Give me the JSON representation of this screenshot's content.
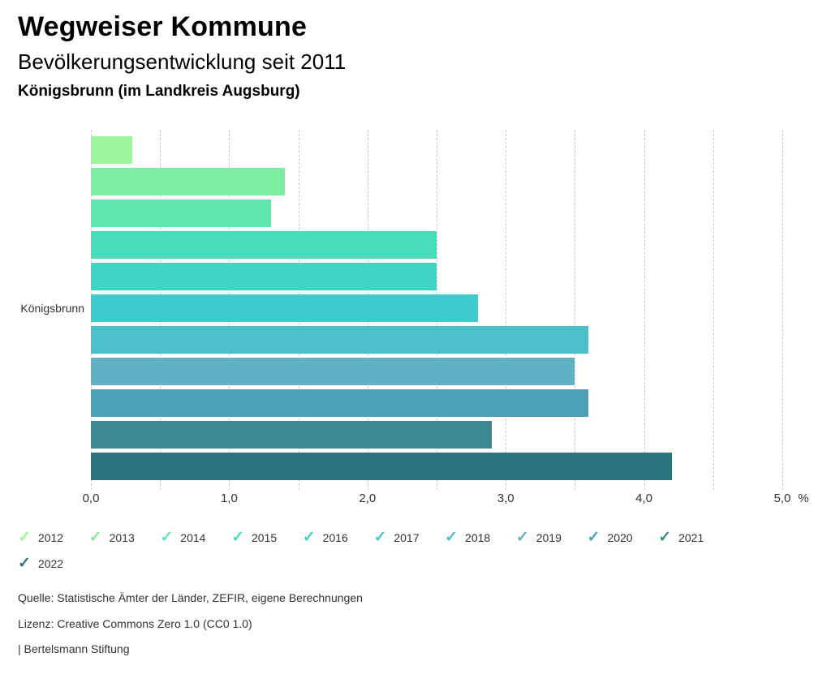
{
  "header": {
    "title": "Wegweiser Kommune",
    "subtitle": "Bevölkerungsentwicklung seit 2011",
    "region": "Königsbrunn (im Landkreis Augsburg)"
  },
  "chart_data": {
    "type": "bar",
    "orientation": "horizontal",
    "title": "Bevölkerungsentwicklung seit 2011",
    "category_label": "Königsbrunn",
    "unit": "%",
    "xlim": [
      0,
      5.28
    ],
    "grid_step": 0.5,
    "grid": true,
    "legend_position": "bottom",
    "x_ticks": [
      {
        "value": 0,
        "label": "0,0"
      },
      {
        "value": 1,
        "label": "1,0"
      },
      {
        "value": 2,
        "label": "2,0"
      },
      {
        "value": 3,
        "label": "3,0"
      },
      {
        "value": 4,
        "label": "4,0"
      },
      {
        "value": 5,
        "label": "5,0"
      }
    ],
    "series": [
      {
        "name": "2012",
        "value": 0.3,
        "color": "#9af59b"
      },
      {
        "name": "2013",
        "value": 1.4,
        "color": "#7deda2"
      },
      {
        "name": "2014",
        "value": 1.3,
        "color": "#5fe5ad"
      },
      {
        "name": "2015",
        "value": 2.5,
        "color": "#4adcba"
      },
      {
        "name": "2016",
        "value": 2.5,
        "color": "#3ed3c5"
      },
      {
        "name": "2017",
        "value": 2.8,
        "color": "#3fcacf"
      },
      {
        "name": "2018",
        "value": 3.6,
        "color": "#4cbfcd"
      },
      {
        "name": "2019",
        "value": 3.5,
        "color": "#61b1c5"
      },
      {
        "name": "2020",
        "value": 3.6,
        "color": "#4aa0b4"
      },
      {
        "name": "2021",
        "value": 2.9,
        "color": "#3a8995"
      },
      {
        "name": "2022",
        "value": 4.2,
        "color": "#2b737f"
      }
    ]
  },
  "footer": {
    "lines": [
      "Quelle: Statistische Ämter der Länder, ZEFIR, eigene Berechnungen",
      "Lizenz: Creative Commons Zero 1.0 (CC0 1.0)",
      "| Bertelsmann Stiftung"
    ]
  }
}
